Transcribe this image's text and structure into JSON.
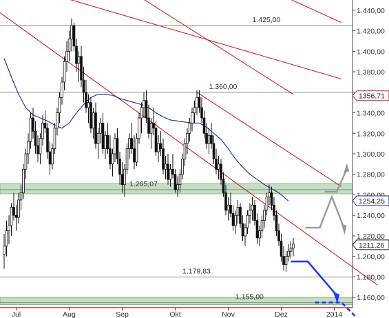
{
  "chart_data": {
    "type": "candlestick",
    "y_axis": {
      "min": 1150,
      "max": 1450,
      "ticks": [
        "1.160,00",
        "1.180,00",
        "1.200,00",
        "1.220,00",
        "1.240,00",
        "1.260,00",
        "1.280,00",
        "1.300,00",
        "1.320,00",
        "1.340,00",
        "1.360,00",
        "1.380,00",
        "1.400,00",
        "1.420,00",
        "1.440,00"
      ],
      "tick_values": [
        1160,
        1180,
        1200,
        1220,
        1240,
        1260,
        1280,
        1300,
        1320,
        1340,
        1360,
        1380,
        1400,
        1420,
        1440
      ]
    },
    "x_axis": {
      "labels": [
        "Jul",
        "Aug",
        "Sep",
        "Okt",
        "Nov",
        "Dez",
        "2014"
      ],
      "label_index": [
        5,
        27,
        49,
        71,
        93,
        115,
        137
      ]
    },
    "horizontal_levels": [
      {
        "value": 1425.0,
        "label": "1.425,00",
        "label_index": 103
      },
      {
        "value": 1360.0,
        "label": "1.360,00",
        "label_index": 85
      },
      {
        "value": 1265.07,
        "label": "1.265,07",
        "label_index": 52
      },
      {
        "value": 1179.83,
        "label": "1.179,83",
        "label_index": 74
      },
      {
        "value": 1155.0,
        "label": "1.155,00",
        "label_index": 96
      }
    ],
    "support_zones": [
      {
        "from": 1261,
        "to": 1271
      },
      {
        "from": 1153,
        "to": 1160
      }
    ],
    "price_markers": [
      {
        "value": 1356.71,
        "label": "1356,71",
        "color": "#b03030"
      },
      {
        "value": 1254.25,
        "label": "1254,25",
        "color": "#1a2a9a"
      },
      {
        "value": 1211.26,
        "label": "1211,26",
        "color": "#111111"
      }
    ],
    "trendlines": [
      {
        "from": [
          -12,
          1455
        ],
        "to": [
          155,
          1172
        ],
        "color": "#cc2222"
      },
      {
        "from": [
          80,
          1360
        ],
        "to": [
          140,
          1268
        ],
        "color": "#cc2222"
      },
      {
        "from": [
          25,
          1452
        ],
        "to": [
          140,
          1373
        ],
        "color": "#cc2222"
      },
      {
        "from": [
          55,
          1455
        ],
        "to": [
          120,
          1358
        ],
        "color": "#cc2222"
      },
      {
        "from": [
          110,
          1460
        ],
        "to": [
          140,
          1428
        ],
        "color": "#cc2222"
      }
    ],
    "moving_average": {
      "color": "#1a2a9a",
      "points": [
        [
          0,
          1393
        ],
        [
          3,
          1375
        ],
        [
          6,
          1358
        ],
        [
          9,
          1345
        ],
        [
          12,
          1338
        ],
        [
          15,
          1335
        ],
        [
          18,
          1332
        ],
        [
          21,
          1328
        ],
        [
          24,
          1325
        ],
        [
          27,
          1330
        ],
        [
          30,
          1340
        ],
        [
          33,
          1348
        ],
        [
          36,
          1355
        ],
        [
          39,
          1358
        ],
        [
          42,
          1358
        ],
        [
          45,
          1357
        ],
        [
          48,
          1354
        ],
        [
          51,
          1352
        ],
        [
          54,
          1350
        ],
        [
          57,
          1348
        ],
        [
          60,
          1345
        ],
        [
          63,
          1340
        ],
        [
          66,
          1336
        ],
        [
          69,
          1333
        ],
        [
          72,
          1332
        ],
        [
          75,
          1331
        ],
        [
          78,
          1330
        ],
        [
          81,
          1330
        ],
        [
          84,
          1326
        ],
        [
          87,
          1320
        ],
        [
          90,
          1314
        ],
        [
          93,
          1305
        ],
        [
          96,
          1295
        ],
        [
          99,
          1287
        ],
        [
          102,
          1280
        ],
        [
          105,
          1275
        ],
        [
          108,
          1270
        ],
        [
          111,
          1266
        ],
        [
          114,
          1262
        ],
        [
          116,
          1258
        ],
        [
          118,
          1254
        ]
      ]
    },
    "series": [
      {
        "type": "candlestick",
        "ohlc": [
          [
            1202,
            1222,
            1188,
            1210
          ],
          [
            1210,
            1235,
            1200,
            1225
          ],
          [
            1225,
            1240,
            1212,
            1230
          ],
          [
            1230,
            1252,
            1220,
            1248
          ],
          [
            1248,
            1262,
            1235,
            1240
          ],
          [
            1240,
            1250,
            1225,
            1238
          ],
          [
            1238,
            1262,
            1232,
            1255
          ],
          [
            1255,
            1270,
            1245,
            1262
          ],
          [
            1262,
            1290,
            1256,
            1285
          ],
          [
            1285,
            1305,
            1275,
            1300
          ],
          [
            1300,
            1320,
            1290,
            1312
          ],
          [
            1312,
            1340,
            1305,
            1335
          ],
          [
            1335,
            1345,
            1315,
            1322
          ],
          [
            1322,
            1332,
            1300,
            1308
          ],
          [
            1308,
            1318,
            1292,
            1300
          ],
          [
            1300,
            1320,
            1290,
            1315
          ],
          [
            1315,
            1338,
            1308,
            1330
          ],
          [
            1330,
            1342,
            1320,
            1325
          ],
          [
            1325,
            1330,
            1295,
            1302
          ],
          [
            1302,
            1312,
            1280,
            1290
          ],
          [
            1290,
            1310,
            1285,
            1305
          ],
          [
            1305,
            1330,
            1300,
            1325
          ],
          [
            1325,
            1345,
            1318,
            1340
          ],
          [
            1340,
            1360,
            1330,
            1355
          ],
          [
            1355,
            1375,
            1348,
            1370
          ],
          [
            1370,
            1395,
            1362,
            1390
          ],
          [
            1390,
            1410,
            1380,
            1400
          ],
          [
            1400,
            1420,
            1390,
            1412
          ],
          [
            1412,
            1432,
            1400,
            1425
          ],
          [
            1425,
            1428,
            1400,
            1405
          ],
          [
            1405,
            1412,
            1380,
            1388
          ],
          [
            1388,
            1400,
            1370,
            1395
          ],
          [
            1395,
            1405,
            1365,
            1372
          ],
          [
            1372,
            1385,
            1350,
            1360
          ],
          [
            1360,
            1372,
            1340,
            1345
          ],
          [
            1345,
            1358,
            1330,
            1350
          ],
          [
            1350,
            1355,
            1320,
            1325
          ],
          [
            1325,
            1345,
            1315,
            1340
          ],
          [
            1340,
            1350,
            1305,
            1310
          ],
          [
            1310,
            1325,
            1295,
            1320
          ],
          [
            1320,
            1335,
            1310,
            1330
          ],
          [
            1330,
            1340,
            1300,
            1305
          ],
          [
            1305,
            1322,
            1295,
            1318
          ],
          [
            1318,
            1330,
            1300,
            1305
          ],
          [
            1305,
            1318,
            1285,
            1290
          ],
          [
            1290,
            1305,
            1278,
            1300
          ],
          [
            1300,
            1320,
            1292,
            1315
          ],
          [
            1315,
            1325,
            1290,
            1295
          ],
          [
            1295,
            1302,
            1270,
            1280
          ],
          [
            1280,
            1292,
            1262,
            1270
          ],
          [
            1270,
            1290,
            1258,
            1285
          ],
          [
            1285,
            1310,
            1280,
            1305
          ],
          [
            1305,
            1320,
            1295,
            1315
          ],
          [
            1315,
            1330,
            1300,
            1305
          ],
          [
            1305,
            1318,
            1285,
            1292
          ],
          [
            1292,
            1320,
            1288,
            1315
          ],
          [
            1315,
            1340,
            1310,
            1335
          ],
          [
            1335,
            1350,
            1320,
            1345
          ],
          [
            1345,
            1360,
            1335,
            1352
          ],
          [
            1352,
            1362,
            1330,
            1335
          ],
          [
            1335,
            1348,
            1315,
            1320
          ],
          [
            1320,
            1335,
            1305,
            1330
          ],
          [
            1330,
            1345,
            1318,
            1325
          ],
          [
            1325,
            1332,
            1298,
            1302
          ],
          [
            1302,
            1318,
            1292,
            1310
          ],
          [
            1310,
            1322,
            1298,
            1305
          ],
          [
            1305,
            1315,
            1280,
            1285
          ],
          [
            1285,
            1298,
            1275,
            1290
          ],
          [
            1290,
            1300,
            1270,
            1275
          ],
          [
            1275,
            1290,
            1268,
            1285
          ],
          [
            1285,
            1300,
            1276,
            1280
          ],
          [
            1280,
            1285,
            1262,
            1265
          ],
          [
            1265,
            1278,
            1258,
            1270
          ],
          [
            1270,
            1285,
            1262,
            1280
          ],
          [
            1280,
            1300,
            1275,
            1295
          ],
          [
            1295,
            1315,
            1288,
            1310
          ],
          [
            1310,
            1325,
            1300,
            1320
          ],
          [
            1320,
            1335,
            1312,
            1330
          ],
          [
            1330,
            1345,
            1322,
            1340
          ],
          [
            1340,
            1352,
            1330,
            1345
          ],
          [
            1345,
            1362,
            1338,
            1355
          ],
          [
            1355,
            1362,
            1340,
            1345
          ],
          [
            1345,
            1355,
            1330,
            1335
          ],
          [
            1335,
            1342,
            1315,
            1320
          ],
          [
            1320,
            1330,
            1305,
            1310
          ],
          [
            1310,
            1325,
            1300,
            1318
          ],
          [
            1318,
            1330,
            1305,
            1310
          ],
          [
            1310,
            1318,
            1290,
            1295
          ],
          [
            1295,
            1305,
            1280,
            1285
          ],
          [
            1285,
            1298,
            1275,
            1290
          ],
          [
            1290,
            1295,
            1270,
            1275
          ],
          [
            1275,
            1282,
            1258,
            1262
          ],
          [
            1262,
            1270,
            1240,
            1245
          ],
          [
            1245,
            1258,
            1235,
            1250
          ],
          [
            1250,
            1262,
            1238,
            1242
          ],
          [
            1242,
            1250,
            1225,
            1230
          ],
          [
            1230,
            1245,
            1222,
            1240
          ],
          [
            1240,
            1255,
            1232,
            1248
          ],
          [
            1248,
            1252,
            1228,
            1232
          ],
          [
            1232,
            1240,
            1215,
            1220
          ],
          [
            1220,
            1232,
            1210,
            1228
          ],
          [
            1228,
            1245,
            1222,
            1240
          ],
          [
            1240,
            1252,
            1232,
            1245
          ],
          [
            1245,
            1258,
            1235,
            1250
          ],
          [
            1250,
            1255,
            1230,
            1235
          ],
          [
            1235,
            1242,
            1212,
            1218
          ],
          [
            1218,
            1230,
            1210,
            1225
          ],
          [
            1225,
            1240,
            1218,
            1235
          ],
          [
            1235,
            1250,
            1228,
            1245
          ],
          [
            1245,
            1262,
            1240,
            1258
          ],
          [
            1258,
            1270,
            1250,
            1262
          ],
          [
            1262,
            1268,
            1245,
            1250
          ],
          [
            1250,
            1258,
            1235,
            1240
          ],
          [
            1240,
            1245,
            1220,
            1225
          ],
          [
            1225,
            1232,
            1210,
            1215
          ],
          [
            1215,
            1222,
            1195,
            1200
          ],
          [
            1200,
            1210,
            1186,
            1192
          ],
          [
            1192,
            1205,
            1185,
            1200
          ],
          [
            1200,
            1212,
            1195,
            1205
          ],
          [
            1205,
            1215,
            1198,
            1208
          ],
          [
            1208,
            1218,
            1200,
            1212
          ]
        ]
      }
    ]
  }
}
